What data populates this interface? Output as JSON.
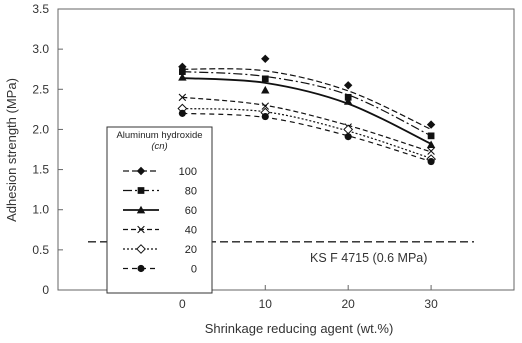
{
  "chart_data": {
    "type": "line",
    "xlabel": "Shrinkage reducing agent (wt.%)",
    "ylabel": "Adhesion strength (MPa)",
    "xlim": [
      -15,
      40
    ],
    "ylim": [
      0,
      3.5
    ],
    "xticks": [
      0,
      10,
      20,
      30
    ],
    "yticks": [
      0,
      0.5,
      1.0,
      1.5,
      2.0,
      2.5,
      3.0,
      3.5
    ],
    "ytick_labels": [
      "0",
      "0.5",
      "1.0",
      "1.5",
      "2.0",
      "2.5",
      "3.0",
      "3.5"
    ],
    "x": [
      0,
      10,
      20,
      30
    ],
    "legend_title_line1": "Aluminum hydroxide",
    "legend_title_line2": "(cn)",
    "legend_position": "center-left",
    "grid": false,
    "series": [
      {
        "name": "100",
        "values": [
          2.78,
          2.88,
          2.55,
          2.06
        ],
        "fit": [
          2.75,
          2.73,
          2.48,
          2.0
        ],
        "marker": "diamond-filled",
        "dash": "6 3"
      },
      {
        "name": "80",
        "values": [
          2.72,
          2.63,
          2.4,
          1.92
        ],
        "fit": [
          2.72,
          2.66,
          2.43,
          1.92
        ],
        "marker": "square-filled",
        "dash": "9 3 2 3"
      },
      {
        "name": "60",
        "values": [
          2.65,
          2.49,
          2.35,
          1.81
        ],
        "fit": [
          2.64,
          2.58,
          2.32,
          1.82
        ],
        "marker": "triangle-filled",
        "dash": ""
      },
      {
        "name": "40",
        "values": [
          2.4,
          2.29,
          2.03,
          1.73
        ],
        "fit": [
          2.4,
          2.3,
          2.05,
          1.72
        ],
        "marker": "x",
        "dash": "5 3"
      },
      {
        "name": "20",
        "values": [
          2.26,
          2.21,
          2.0,
          1.63
        ],
        "fit": [
          2.26,
          2.22,
          1.98,
          1.64
        ],
        "marker": "diamond-open",
        "dash": "2 2"
      },
      {
        "name": "0",
        "values": [
          2.2,
          2.16,
          1.91,
          1.6
        ],
        "fit": [
          2.2,
          2.15,
          1.92,
          1.6
        ],
        "marker": "circle-filled",
        "dash": "5 4"
      }
    ],
    "reference_line": {
      "value": 0.6,
      "label": "KS F 4715 (0.6 MPa)"
    }
  }
}
